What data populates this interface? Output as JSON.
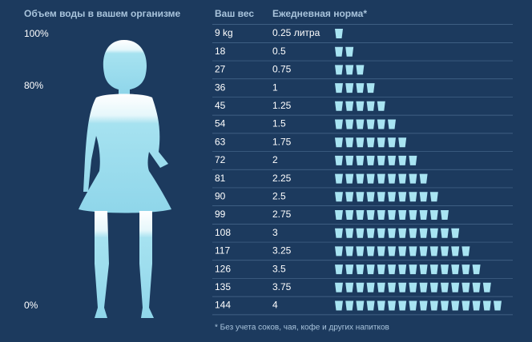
{
  "left": {
    "title": "Объем воды в вашем организме",
    "scale": [
      "100%",
      "80%",
      "0%"
    ]
  },
  "table": {
    "headers": [
      "Ваш вес",
      "Ежедневная норма*"
    ],
    "rows": [
      {
        "weight": "9 kg",
        "norm": "0.25 литра",
        "glasses": 1
      },
      {
        "weight": "18",
        "norm": "0.5",
        "glasses": 2
      },
      {
        "weight": "27",
        "norm": "0.75",
        "glasses": 3
      },
      {
        "weight": "36",
        "norm": "1",
        "glasses": 4
      },
      {
        "weight": "45",
        "norm": "1.25",
        "glasses": 5
      },
      {
        "weight": "54",
        "norm": "1.5",
        "glasses": 6
      },
      {
        "weight": "63",
        "norm": "1.75",
        "glasses": 7
      },
      {
        "weight": "72",
        "norm": "2",
        "glasses": 8
      },
      {
        "weight": "81",
        "norm": "2.25",
        "glasses": 9
      },
      {
        "weight": "90",
        "norm": "2.5",
        "glasses": 10
      },
      {
        "weight": "99",
        "norm": "2.75",
        "glasses": 11
      },
      {
        "weight": "108",
        "norm": "3",
        "glasses": 12
      },
      {
        "weight": "117",
        "norm": "3.25",
        "glasses": 13
      },
      {
        "weight": "126",
        "norm": "3.5",
        "glasses": 14
      },
      {
        "weight": "135",
        "norm": "3.75",
        "glasses": 15
      },
      {
        "weight": "144",
        "norm": "4",
        "glasses": 16
      }
    ]
  },
  "footnote": "* Без учета соков, чая, кофе и других напитков"
}
